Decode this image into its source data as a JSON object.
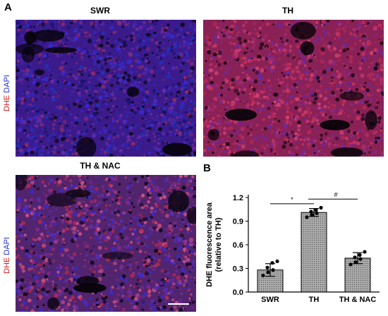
{
  "panel_a": {
    "letter": "A",
    "stain_label": {
      "dhe": "DHE",
      "dapi": "DAPI"
    },
    "images": [
      {
        "title": "SWR",
        "tint": "#3b1b8c"
      },
      {
        "title": "TH",
        "tint": "#8a2156"
      },
      {
        "title": "TH & NAC",
        "tint": "#52246e"
      }
    ]
  },
  "panel_b": {
    "letter": "B",
    "significance": {
      "star": "*",
      "hash": "#"
    }
  },
  "chart_data": {
    "type": "bar",
    "categories": [
      "SWR",
      "TH",
      "TH & NAC"
    ],
    "values": [
      0.28,
      1.01,
      0.43
    ],
    "errors": [
      0.08,
      0.05,
      0.07
    ],
    "points": [
      [
        0.21,
        0.25,
        0.28,
        0.31,
        0.37,
        0.39
      ],
      [
        0.95,
        0.98,
        1.0,
        1.02,
        1.04,
        1.07
      ],
      [
        0.35,
        0.38,
        0.42,
        0.44,
        0.47,
        0.51
      ]
    ],
    "ylabel_line1": "DHE fluorescence area",
    "ylabel_line2": "(relative to TH)",
    "ylim": [
      0,
      1.2
    ],
    "yticks": [
      "0.0",
      "0.3",
      "0.6",
      "0.9",
      "1.2"
    ],
    "grid": false,
    "bar_fill": "#a8a8a8"
  }
}
